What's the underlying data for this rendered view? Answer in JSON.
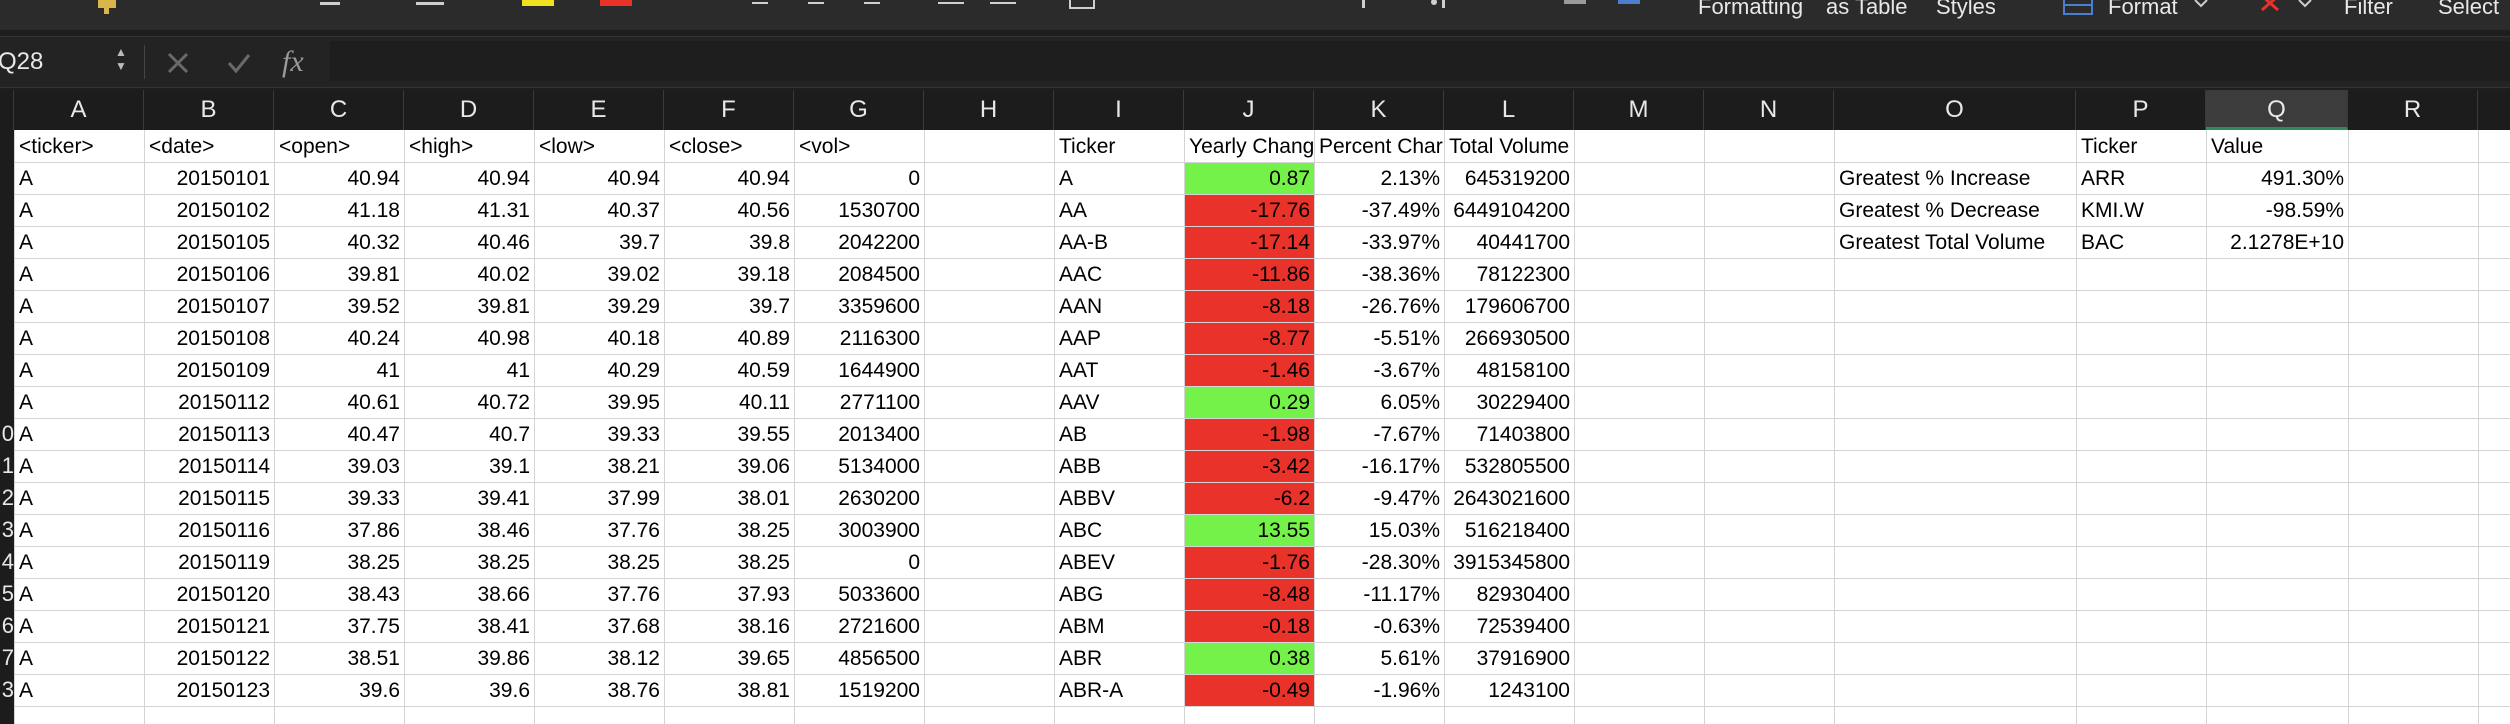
{
  "ribbon": {
    "items": [
      "Formatting",
      "as Table",
      "Styles",
      "Format",
      "Filter",
      "Select"
    ]
  },
  "formula_bar": {
    "name_box": "Q28",
    "fx_label": "fx",
    "value": ""
  },
  "columns": [
    "A",
    "B",
    "C",
    "D",
    "E",
    "F",
    "G",
    "H",
    "I",
    "J",
    "K",
    "L",
    "M",
    "N",
    "O",
    "P",
    "Q",
    "R"
  ],
  "selected_column": "Q",
  "row_numbers": [
    "",
    "",
    "",
    "",
    "",
    "",
    "",
    "",
    "",
    "0",
    "1",
    "2",
    "3",
    "4",
    "5",
    "6",
    "7",
    "3",
    ""
  ],
  "headers": [
    "<ticker>",
    "<date>",
    "<open>",
    "<high>",
    "<low>",
    "<close>",
    "<vol>"
  ],
  "raw_rows": [
    [
      "A",
      "20150101",
      "40.94",
      "40.94",
      "40.94",
      "40.94",
      "0"
    ],
    [
      "A",
      "20150102",
      "41.18",
      "41.31",
      "40.37",
      "40.56",
      "1530700"
    ],
    [
      "A",
      "20150105",
      "40.32",
      "40.46",
      "39.7",
      "39.8",
      "2042200"
    ],
    [
      "A",
      "20150106",
      "39.81",
      "40.02",
      "39.02",
      "39.18",
      "2084500"
    ],
    [
      "A",
      "20150107",
      "39.52",
      "39.81",
      "39.29",
      "39.7",
      "3359600"
    ],
    [
      "A",
      "20150108",
      "40.24",
      "40.98",
      "40.18",
      "40.89",
      "2116300"
    ],
    [
      "A",
      "20150109",
      "41",
      "41",
      "40.29",
      "40.59",
      "1644900"
    ],
    [
      "A",
      "20150112",
      "40.61",
      "40.72",
      "39.95",
      "40.11",
      "2771100"
    ],
    [
      "A",
      "20150113",
      "40.47",
      "40.7",
      "39.33",
      "39.55",
      "2013400"
    ],
    [
      "A",
      "20150114",
      "39.03",
      "39.1",
      "38.21",
      "39.06",
      "5134000"
    ],
    [
      "A",
      "20150115",
      "39.33",
      "39.41",
      "37.99",
      "38.01",
      "2630200"
    ],
    [
      "A",
      "20150116",
      "37.86",
      "38.46",
      "37.76",
      "38.25",
      "3003900"
    ],
    [
      "A",
      "20150119",
      "38.25",
      "38.25",
      "38.25",
      "38.25",
      "0"
    ],
    [
      "A",
      "20150120",
      "38.43",
      "38.66",
      "37.76",
      "37.93",
      "5033600"
    ],
    [
      "A",
      "20150121",
      "37.75",
      "38.41",
      "37.68",
      "38.16",
      "2721600"
    ],
    [
      "A",
      "20150122",
      "38.51",
      "39.86",
      "38.12",
      "39.65",
      "4856500"
    ],
    [
      "A",
      "20150123",
      "39.6",
      "39.6",
      "38.76",
      "38.81",
      "1519200"
    ]
  ],
  "summary_headers": [
    "Ticker",
    "Yearly Chang",
    "Percent Char",
    "Total Volume"
  ],
  "summary_rows": [
    {
      "ticker": "A",
      "change": "0.87",
      "pct": "2.13%",
      "volume": "645319200",
      "status": "positive"
    },
    {
      "ticker": "AA",
      "change": "-17.76",
      "pct": "-37.49%",
      "volume": "6449104200",
      "status": "negative"
    },
    {
      "ticker": "AA-B",
      "change": "-17.14",
      "pct": "-33.97%",
      "volume": "40441700",
      "status": "negative"
    },
    {
      "ticker": "AAC",
      "change": "-11.86",
      "pct": "-38.36%",
      "volume": "78122300",
      "status": "negative"
    },
    {
      "ticker": "AAN",
      "change": "-8.18",
      "pct": "-26.76%",
      "volume": "179606700",
      "status": "negative"
    },
    {
      "ticker": "AAP",
      "change": "-8.77",
      "pct": "-5.51%",
      "volume": "266930500",
      "status": "negative"
    },
    {
      "ticker": "AAT",
      "change": "-1.46",
      "pct": "-3.67%",
      "volume": "48158100",
      "status": "negative"
    },
    {
      "ticker": "AAV",
      "change": "0.29",
      "pct": "6.05%",
      "volume": "30229400",
      "status": "positive"
    },
    {
      "ticker": "AB",
      "change": "-1.98",
      "pct": "-7.67%",
      "volume": "71403800",
      "status": "negative"
    },
    {
      "ticker": "ABB",
      "change": "-3.42",
      "pct": "-16.17%",
      "volume": "532805500",
      "status": "negative"
    },
    {
      "ticker": "ABBV",
      "change": "-6.2",
      "pct": "-9.47%",
      "volume": "2643021600",
      "status": "negative"
    },
    {
      "ticker": "ABC",
      "change": "13.55",
      "pct": "15.03%",
      "volume": "516218400",
      "status": "positive"
    },
    {
      "ticker": "ABEV",
      "change": "-1.76",
      "pct": "-28.30%",
      "volume": "3915345800",
      "status": "negative"
    },
    {
      "ticker": "ABG",
      "change": "-8.48",
      "pct": "-11.17%",
      "volume": "82930400",
      "status": "negative"
    },
    {
      "ticker": "ABM",
      "change": "-0.18",
      "pct": "-0.63%",
      "volume": "72539400",
      "status": "negative"
    },
    {
      "ticker": "ABR",
      "change": "0.38",
      "pct": "5.61%",
      "volume": "37916900",
      "status": "positive"
    },
    {
      "ticker": "ABR-A",
      "change": "-0.49",
      "pct": "-1.96%",
      "volume": "1243100",
      "status": "negative"
    }
  ],
  "greatest": {
    "headers": [
      "Ticker",
      "Value"
    ],
    "rows": [
      {
        "label": "Greatest % Increase",
        "ticker": "ARR",
        "value": "491.30%"
      },
      {
        "label": "Greatest % Decrease",
        "ticker": "KMI.W",
        "value": "-98.59%"
      },
      {
        "label": "Greatest Total Volume",
        "ticker": "BAC",
        "value": "2.1278E+10"
      }
    ]
  },
  "colors": {
    "positive": "#75f24a",
    "negative": "#e9322a",
    "selected_column_marker": "#2e8b57"
  }
}
